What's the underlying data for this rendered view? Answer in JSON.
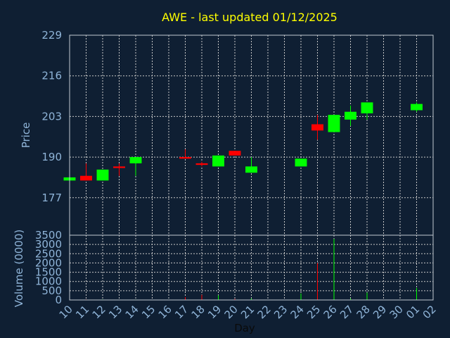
{
  "chart_data": {
    "type": "candlestick",
    "title": "AWE - last updated 01/12/2025",
    "xlabel": "Day",
    "x_ticks": [
      "10",
      "11",
      "12",
      "13",
      "14",
      "15",
      "16",
      "17",
      "18",
      "19",
      "20",
      "21",
      "22",
      "23",
      "24",
      "25",
      "26",
      "27",
      "28",
      "29",
      "30",
      "01",
      "02"
    ],
    "price": {
      "ylabel": "Price",
      "ylim": [
        165,
        229
      ],
      "yticks": [
        229,
        216,
        203,
        190,
        177
      ],
      "candles": [
        {
          "x": "10",
          "open": 182.5,
          "close": 183.5,
          "high": 183.5,
          "low": 182.5
        },
        {
          "x": "11",
          "open": 184.0,
          "close": 182.5,
          "high": 188.0,
          "low": 182.5
        },
        {
          "x": "12",
          "open": 182.5,
          "close": 186.0,
          "high": 186.0,
          "low": 182.5
        },
        {
          "x": "13",
          "open": 187.0,
          "close": 186.5,
          "high": 188.0,
          "low": 184.0
        },
        {
          "x": "14",
          "open": 188.0,
          "close": 190.0,
          "high": 190.0,
          "low": 184.0
        },
        {
          "x": "17",
          "open": 190.0,
          "close": 189.5,
          "high": 192.5,
          "low": 189.5
        },
        {
          "x": "18",
          "open": 188.0,
          "close": 187.5,
          "high": 188.5,
          "low": 187.0
        },
        {
          "x": "19",
          "open": 187.0,
          "close": 190.5,
          "high": 190.5,
          "low": 187.0
        },
        {
          "x": "20",
          "open": 192.0,
          "close": 190.5,
          "high": 192.0,
          "low": 190.5
        },
        {
          "x": "21",
          "open": 185.0,
          "close": 187.0,
          "high": 190.0,
          "low": 185.0
        },
        {
          "x": "24",
          "open": 187.0,
          "close": 189.5,
          "high": 189.5,
          "low": 187.0
        },
        {
          "x": "25",
          "open": 200.5,
          "close": 198.5,
          "high": 203.5,
          "low": 195.5
        },
        {
          "x": "26",
          "open": 198.0,
          "close": 203.5,
          "high": 203.5,
          "low": 198.0
        },
        {
          "x": "27",
          "open": 202.0,
          "close": 204.5,
          "high": 206.5,
          "low": 200.0
        },
        {
          "x": "28",
          "open": 204.0,
          "close": 207.5,
          "high": 207.5,
          "low": 202.0
        },
        {
          "x": "01",
          "open": 205.0,
          "close": 207.0,
          "high": 207.5,
          "low": 204.5
        }
      ]
    },
    "volume": {
      "ylabel": "Volume (0000)",
      "ylim": [
        0,
        3500
      ],
      "yticks": [
        0,
        500,
        1000,
        1500,
        2000,
        2500,
        3000,
        3500
      ],
      "bars": [
        {
          "x": "10",
          "value": 20,
          "color": "green"
        },
        {
          "x": "11",
          "value": 30,
          "color": "red"
        },
        {
          "x": "12",
          "value": 30,
          "color": "green"
        },
        {
          "x": "13",
          "value": 20,
          "color": "red"
        },
        {
          "x": "14",
          "value": 25,
          "color": "green"
        },
        {
          "x": "17",
          "value": 150,
          "color": "red"
        },
        {
          "x": "18",
          "value": 280,
          "color": "red"
        },
        {
          "x": "19",
          "value": 250,
          "color": "green"
        },
        {
          "x": "20",
          "value": 60,
          "color": "red"
        },
        {
          "x": "21",
          "value": 80,
          "color": "green"
        },
        {
          "x": "24",
          "value": 350,
          "color": "green"
        },
        {
          "x": "25",
          "value": 2000,
          "color": "red"
        },
        {
          "x": "26",
          "value": 3300,
          "color": "green"
        },
        {
          "x": "27",
          "value": 80,
          "color": "green"
        },
        {
          "x": "28",
          "value": 400,
          "color": "green"
        },
        {
          "x": "01",
          "value": 650,
          "color": "green"
        }
      ]
    },
    "colors": {
      "up": "#00ff00",
      "down": "#ff0000",
      "grid": "#c8c8c8"
    }
  }
}
